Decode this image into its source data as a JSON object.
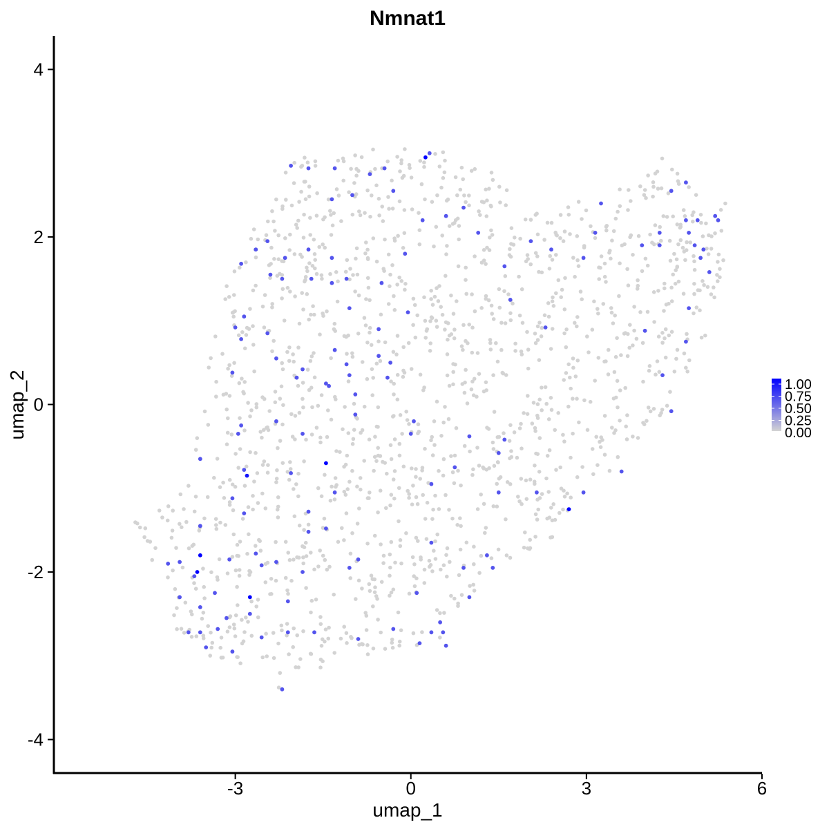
{
  "chart_data": {
    "type": "scatter",
    "title": "Nmnat1",
    "xlabel": "umap_1",
    "ylabel": "umap_2",
    "xlim": [
      -6.1,
      6.0
    ],
    "ylim": [
      -4.4,
      4.4
    ],
    "xticks": [
      -3,
      0,
      3,
      6
    ],
    "xtick_labels": [
      "-3",
      "0",
      "3",
      "6"
    ],
    "yticks": [
      -4,
      -2,
      0,
      2,
      4
    ],
    "ytick_labels": [
      "-4",
      "-2",
      "0",
      "2",
      "4"
    ],
    "grid": false,
    "legend_placement": "right",
    "legend": {
      "labels": [
        "1.00",
        "0.75",
        "0.50",
        "0.25",
        "0.00"
      ],
      "low_color": "#d3d3d3",
      "high_color": "#0000ff"
    },
    "background_color": "#d3d3d3",
    "highlighted_points": [
      {
        "x": 0.25,
        "y": 2.95,
        "v": 1.0
      },
      {
        "x": 0.32,
        "y": 3.0,
        "v": 0.6
      },
      {
        "x": -2.05,
        "y": 2.85,
        "v": 0.6
      },
      {
        "x": -1.75,
        "y": 2.82,
        "v": 0.6
      },
      {
        "x": -1.3,
        "y": 2.82,
        "v": 0.6
      },
      {
        "x": -0.7,
        "y": 2.75,
        "v": 0.6
      },
      {
        "x": -0.45,
        "y": 2.82,
        "v": 0.6
      },
      {
        "x": -0.3,
        "y": 2.55,
        "v": 0.6
      },
      {
        "x": -1.0,
        "y": 2.5,
        "v": 0.6
      },
      {
        "x": -1.35,
        "y": 2.45,
        "v": 0.6
      },
      {
        "x": 0.2,
        "y": 2.2,
        "v": 0.6
      },
      {
        "x": 0.6,
        "y": 2.25,
        "v": 0.6
      },
      {
        "x": 0.9,
        "y": 2.35,
        "v": 0.6
      },
      {
        "x": 1.15,
        "y": 2.05,
        "v": 0.6
      },
      {
        "x": -2.45,
        "y": 1.95,
        "v": 0.6
      },
      {
        "x": -2.65,
        "y": 1.85,
        "v": 0.6
      },
      {
        "x": -2.15,
        "y": 1.75,
        "v": 0.6
      },
      {
        "x": -1.75,
        "y": 1.85,
        "v": 0.6
      },
      {
        "x": -1.35,
        "y": 1.75,
        "v": 0.6
      },
      {
        "x": -2.9,
        "y": 1.68,
        "v": 0.6
      },
      {
        "x": -2.4,
        "y": 1.55,
        "v": 0.6
      },
      {
        "x": -2.2,
        "y": 1.5,
        "v": 0.6
      },
      {
        "x": -1.7,
        "y": 1.5,
        "v": 0.6
      },
      {
        "x": -1.35,
        "y": 1.45,
        "v": 0.6
      },
      {
        "x": -1.1,
        "y": 1.5,
        "v": 0.6
      },
      {
        "x": -0.5,
        "y": 1.45,
        "v": 0.6
      },
      {
        "x": -0.1,
        "y": 1.8,
        "v": 0.6
      },
      {
        "x": -0.05,
        "y": 1.1,
        "v": 0.6
      },
      {
        "x": -2.85,
        "y": 1.05,
        "v": 0.6
      },
      {
        "x": -1.05,
        "y": 1.15,
        "v": 0.6
      },
      {
        "x": -0.55,
        "y": 0.9,
        "v": 0.6
      },
      {
        "x": -3.0,
        "y": 0.92,
        "v": 0.6
      },
      {
        "x": -2.9,
        "y": 0.78,
        "v": 0.6
      },
      {
        "x": -2.45,
        "y": 0.85,
        "v": 0.6
      },
      {
        "x": -1.3,
        "y": 0.65,
        "v": 0.6
      },
      {
        "x": -2.3,
        "y": 0.55,
        "v": 0.6
      },
      {
        "x": -1.85,
        "y": 0.42,
        "v": 0.6
      },
      {
        "x": -1.95,
        "y": 0.32,
        "v": 0.6
      },
      {
        "x": -1.1,
        "y": 0.48,
        "v": 0.6
      },
      {
        "x": -0.55,
        "y": 0.58,
        "v": 0.6
      },
      {
        "x": -0.35,
        "y": 0.5,
        "v": 0.6
      },
      {
        "x": -0.4,
        "y": 0.32,
        "v": 0.6
      },
      {
        "x": -1.05,
        "y": 0.35,
        "v": 0.6
      },
      {
        "x": -1.45,
        "y": 0.25,
        "v": 0.6
      },
      {
        "x": -1.4,
        "y": 0.22,
        "v": 0.6
      },
      {
        "x": -3.05,
        "y": 0.38,
        "v": 0.6
      },
      {
        "x": -0.95,
        "y": 0.12,
        "v": 0.6
      },
      {
        "x": -0.95,
        "y": -0.12,
        "v": 0.6
      },
      {
        "x": 0.05,
        "y": -0.2,
        "v": 0.6
      },
      {
        "x": 0.0,
        "y": -0.35,
        "v": 0.6
      },
      {
        "x": 1.0,
        "y": -0.38,
        "v": 0.6
      },
      {
        "x": 1.6,
        "y": -0.42,
        "v": 0.6
      },
      {
        "x": 1.5,
        "y": -0.58,
        "v": 0.6
      },
      {
        "x": -2.3,
        "y": -0.2,
        "v": 0.6
      },
      {
        "x": -2.9,
        "y": -0.25,
        "v": 0.6
      },
      {
        "x": -2.95,
        "y": -0.35,
        "v": 0.6
      },
      {
        "x": -1.85,
        "y": -0.35,
        "v": 0.6
      },
      {
        "x": -3.6,
        "y": -0.65,
        "v": 0.6
      },
      {
        "x": -1.45,
        "y": -0.7,
        "v": 1.0
      },
      {
        "x": -2.8,
        "y": -0.85,
        "v": 0.9
      },
      {
        "x": -2.85,
        "y": -0.78,
        "v": 0.6
      },
      {
        "x": -2.05,
        "y": -0.82,
        "v": 0.6
      },
      {
        "x": 0.75,
        "y": -0.75,
        "v": 0.6
      },
      {
        "x": 0.35,
        "y": -0.95,
        "v": 0.6
      },
      {
        "x": -1.3,
        "y": -1.05,
        "v": 0.6
      },
      {
        "x": -3.05,
        "y": -1.12,
        "v": 0.6
      },
      {
        "x": -2.85,
        "y": -1.3,
        "v": 0.6
      },
      {
        "x": -1.75,
        "y": -1.28,
        "v": 0.6
      },
      {
        "x": -1.45,
        "y": -1.48,
        "v": 0.6
      },
      {
        "x": -1.75,
        "y": -1.52,
        "v": 0.6
      },
      {
        "x": 1.5,
        "y": -1.05,
        "v": 0.6
      },
      {
        "x": 2.15,
        "y": -1.05,
        "v": 0.6
      },
      {
        "x": 2.7,
        "y": -1.25,
        "v": 1.0
      },
      {
        "x": 2.95,
        "y": -1.05,
        "v": 0.6
      },
      {
        "x": 3.6,
        "y": -0.8,
        "v": 0.6
      },
      {
        "x": 4.45,
        "y": -0.08,
        "v": 0.6
      },
      {
        "x": 4.3,
        "y": 0.35,
        "v": 0.6
      },
      {
        "x": -3.6,
        "y": -1.45,
        "v": 0.6
      },
      {
        "x": -3.6,
        "y": -1.8,
        "v": 1.0
      },
      {
        "x": -3.65,
        "y": -2.0,
        "v": 1.0
      },
      {
        "x": -3.7,
        "y": -2.05,
        "v": 0.6
      },
      {
        "x": -3.95,
        "y": -1.88,
        "v": 0.6
      },
      {
        "x": -4.15,
        "y": -1.9,
        "v": 0.6
      },
      {
        "x": -3.1,
        "y": -1.85,
        "v": 0.6
      },
      {
        "x": -2.65,
        "y": -1.78,
        "v": 0.6
      },
      {
        "x": -2.55,
        "y": -1.92,
        "v": 0.6
      },
      {
        "x": -2.3,
        "y": -1.88,
        "v": 0.6
      },
      {
        "x": -1.85,
        "y": -2.0,
        "v": 0.6
      },
      {
        "x": -2.75,
        "y": -2.3,
        "v": 1.0
      },
      {
        "x": -3.35,
        "y": -2.25,
        "v": 0.6
      },
      {
        "x": -3.95,
        "y": -2.3,
        "v": 0.6
      },
      {
        "x": -3.6,
        "y": -2.42,
        "v": 0.6
      },
      {
        "x": -2.1,
        "y": -2.35,
        "v": 0.6
      },
      {
        "x": -2.75,
        "y": -2.5,
        "v": 0.6
      },
      {
        "x": -3.15,
        "y": -2.55,
        "v": 0.6
      },
      {
        "x": -3.3,
        "y": -2.68,
        "v": 0.6
      },
      {
        "x": -3.6,
        "y": -2.72,
        "v": 0.6
      },
      {
        "x": -3.8,
        "y": -2.72,
        "v": 0.6
      },
      {
        "x": -2.55,
        "y": -2.78,
        "v": 0.6
      },
      {
        "x": -2.1,
        "y": -2.72,
        "v": 0.6
      },
      {
        "x": -1.65,
        "y": -2.72,
        "v": 0.6
      },
      {
        "x": -3.5,
        "y": -2.9,
        "v": 0.6
      },
      {
        "x": -3.05,
        "y": -2.95,
        "v": 0.6
      },
      {
        "x": -2.2,
        "y": -3.4,
        "v": 0.6
      },
      {
        "x": -0.9,
        "y": -2.8,
        "v": 0.6
      },
      {
        "x": -0.3,
        "y": -2.68,
        "v": 0.6
      },
      {
        "x": 0.15,
        "y": -2.85,
        "v": 0.6
      },
      {
        "x": 0.35,
        "y": -2.72,
        "v": 0.6
      },
      {
        "x": 0.5,
        "y": -2.6,
        "v": 0.6
      },
      {
        "x": 0.55,
        "y": -2.72,
        "v": 0.6
      },
      {
        "x": 0.6,
        "y": -2.88,
        "v": 0.6
      },
      {
        "x": 0.1,
        "y": -2.25,
        "v": 0.6
      },
      {
        "x": 1.0,
        "y": -2.3,
        "v": 0.6
      },
      {
        "x": -0.9,
        "y": -1.85,
        "v": 0.6
      },
      {
        "x": -1.05,
        "y": -1.95,
        "v": 0.6
      },
      {
        "x": 0.35,
        "y": -1.65,
        "v": 0.6
      },
      {
        "x": 0.9,
        "y": -1.95,
        "v": 0.6
      },
      {
        "x": 1.3,
        "y": -1.8,
        "v": 0.6
      },
      {
        "x": 1.4,
        "y": -1.95,
        "v": 0.6
      },
      {
        "x": 2.3,
        "y": 0.92,
        "v": 0.6
      },
      {
        "x": 1.6,
        "y": 1.65,
        "v": 0.6
      },
      {
        "x": 1.7,
        "y": 1.25,
        "v": 0.6
      },
      {
        "x": 2.4,
        "y": 1.85,
        "v": 0.6
      },
      {
        "x": 2.05,
        "y": 1.95,
        "v": 0.6
      },
      {
        "x": 2.95,
        "y": 1.75,
        "v": 0.6
      },
      {
        "x": 3.15,
        "y": 2.05,
        "v": 0.6
      },
      {
        "x": 3.25,
        "y": 2.4,
        "v": 0.6
      },
      {
        "x": 3.95,
        "y": 1.9,
        "v": 0.6
      },
      {
        "x": 4.0,
        "y": 0.88,
        "v": 0.6
      },
      {
        "x": 4.25,
        "y": 2.05,
        "v": 0.6
      },
      {
        "x": 4.25,
        "y": 1.9,
        "v": 0.6
      },
      {
        "x": 4.45,
        "y": 2.55,
        "v": 0.6
      },
      {
        "x": 4.7,
        "y": 2.65,
        "v": 0.6
      },
      {
        "x": 4.7,
        "y": 2.2,
        "v": 0.6
      },
      {
        "x": 4.75,
        "y": 2.05,
        "v": 0.6
      },
      {
        "x": 4.9,
        "y": 2.2,
        "v": 0.6
      },
      {
        "x": 4.85,
        "y": 1.9,
        "v": 0.6
      },
      {
        "x": 5.0,
        "y": 1.85,
        "v": 0.6
      },
      {
        "x": 4.95,
        "y": 1.75,
        "v": 0.6
      },
      {
        "x": 5.2,
        "y": 2.25,
        "v": 0.6
      },
      {
        "x": 5.25,
        "y": 2.2,
        "v": 0.6
      },
      {
        "x": 5.1,
        "y": 1.58,
        "v": 0.6
      },
      {
        "x": 4.75,
        "y": 1.15,
        "v": 0.6
      },
      {
        "x": 4.7,
        "y": 0.75,
        "v": 0.6
      }
    ]
  }
}
